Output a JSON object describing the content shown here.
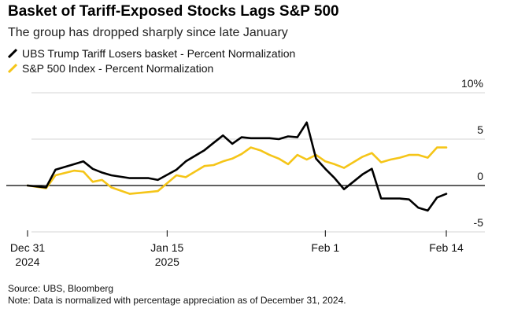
{
  "header": {
    "title": "Basket of Tariff-Exposed Stocks Lags S&P 500",
    "subtitle": "The group has dropped sharply since late January"
  },
  "legend": {
    "items": [
      {
        "label": "UBS Trump Tariff Losers basket - Percent Normalization",
        "color": "#000000"
      },
      {
        "label": "S&P 500 Index - Percent Normalization",
        "color": "#f5c518"
      }
    ]
  },
  "footer": {
    "source": "Source: UBS, Bloomberg",
    "note": "Note: Data is normalized with percentage appreciation as of December 31, 2024."
  },
  "chart_data": {
    "type": "line",
    "title": "Basket of Tariff-Exposed Stocks Lags S&P 500",
    "subtitle": "The group has dropped sharply since late January",
    "xlabel": "",
    "ylabel": "",
    "xlim": [
      0,
      46
    ],
    "ylim": [
      -5,
      10
    ],
    "grid": true,
    "y_ticks": [
      {
        "value": 10,
        "label": "10%"
      },
      {
        "value": 5,
        "label": "5"
      },
      {
        "value": 0,
        "label": "0"
      },
      {
        "value": -5,
        "label": "-5"
      }
    ],
    "x_ticks": [
      {
        "value": 0,
        "line1": "Dec 31",
        "line2": "2024"
      },
      {
        "value": 15,
        "line1": "Jan 15",
        "line2": "2025"
      },
      {
        "value": 32,
        "line1": "Feb 1",
        "line2": ""
      },
      {
        "value": 45,
        "line1": "Feb 14",
        "line2": ""
      }
    ],
    "series": [
      {
        "name": "UBS Trump Tariff Losers basket - Percent Normalization",
        "color": "#000000",
        "x": [
          0,
          2,
          3,
          5,
          6,
          7,
          8,
          9,
          11,
          12,
          13,
          14,
          16,
          17,
          19,
          20,
          21,
          22,
          23,
          24,
          25,
          26,
          27,
          28,
          29,
          30,
          31,
          32,
          33,
          34,
          35,
          36,
          37,
          38,
          39,
          40,
          41,
          42,
          43,
          44,
          45
        ],
        "values": [
          0.0,
          -0.2,
          1.7,
          2.3,
          2.6,
          1.8,
          1.4,
          1.1,
          0.8,
          0.8,
          0.8,
          0.6,
          1.7,
          2.6,
          3.8,
          4.6,
          5.4,
          4.5,
          5.2,
          5.1,
          5.1,
          5.1,
          5.0,
          5.3,
          5.2,
          6.8,
          2.9,
          1.8,
          0.8,
          -0.4,
          0.4,
          1.2,
          1.8,
          -1.4,
          -1.4,
          -1.4,
          -1.5,
          -2.4,
          -2.7,
          -1.3,
          -0.9
        ]
      },
      {
        "name": "S&P 500 Index - Percent Normalization",
        "color": "#f5c518",
        "x": [
          0,
          2,
          3,
          5,
          6,
          7,
          8,
          9,
          11,
          12,
          13,
          14,
          16,
          17,
          19,
          20,
          21,
          22,
          23,
          24,
          25,
          26,
          27,
          28,
          29,
          30,
          31,
          32,
          33,
          34,
          35,
          36,
          37,
          38,
          39,
          40,
          41,
          42,
          43,
          44,
          45
        ],
        "values": [
          0.0,
          -0.3,
          1.1,
          1.6,
          1.5,
          0.4,
          0.6,
          -0.2,
          -0.9,
          -0.8,
          -0.7,
          -0.6,
          1.1,
          0.9,
          2.1,
          2.2,
          2.6,
          2.9,
          3.4,
          4.1,
          3.8,
          3.3,
          2.9,
          2.3,
          3.3,
          2.8,
          3.3,
          2.6,
          2.3,
          1.9,
          2.5,
          3.1,
          3.5,
          2.5,
          2.8,
          3.0,
          3.3,
          3.3,
          3.0,
          4.1,
          4.1
        ]
      }
    ]
  }
}
